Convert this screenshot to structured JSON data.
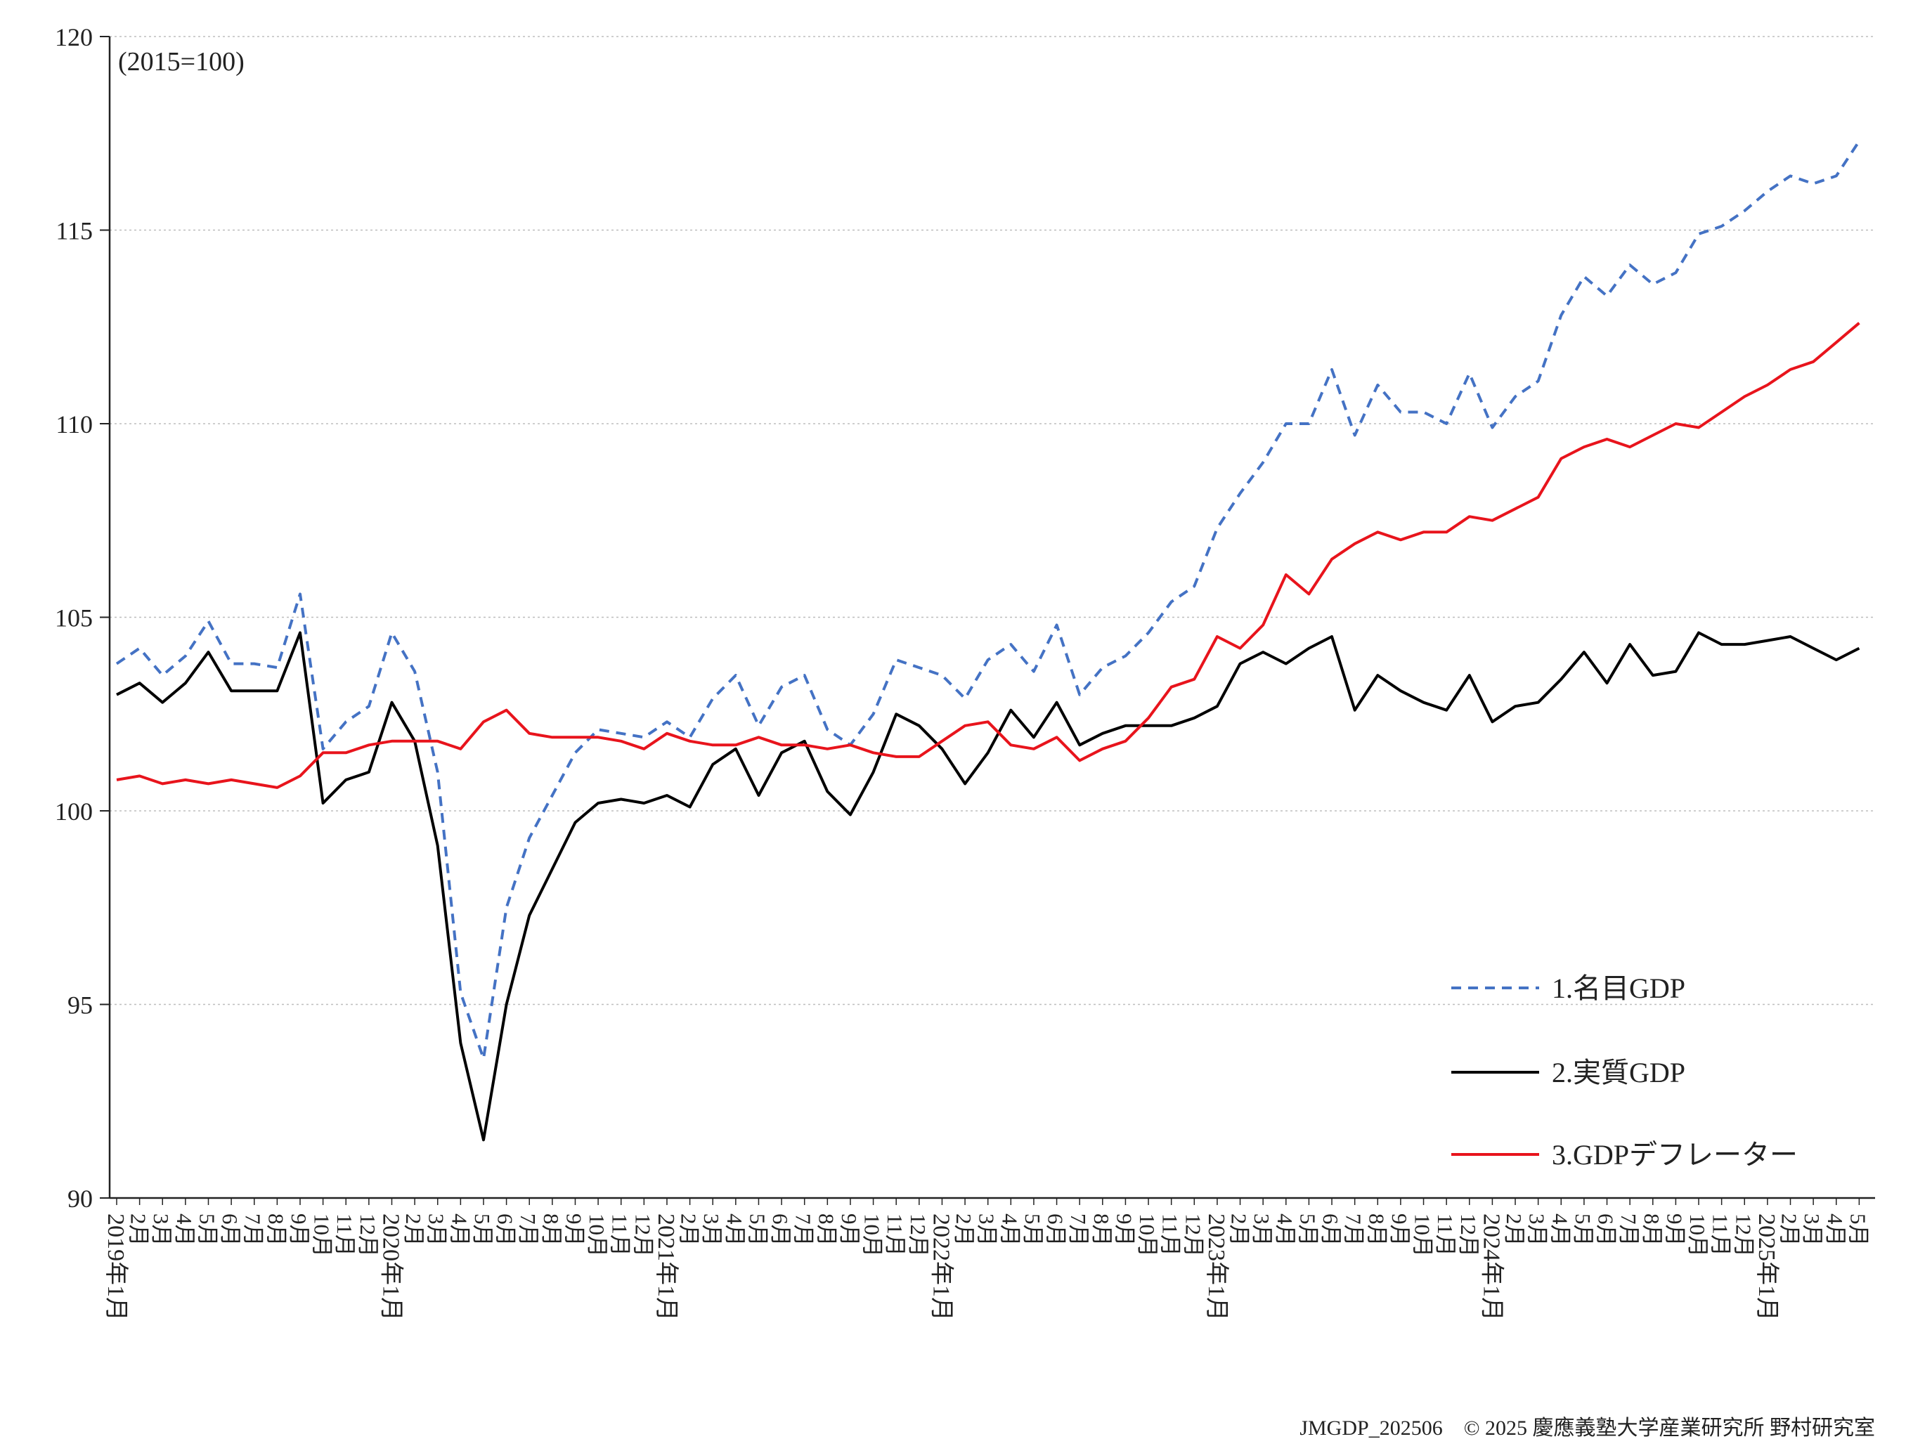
{
  "chart_data": {
    "type": "line",
    "unit_note": "(2015=100)",
    "ylim": [
      90,
      120
    ],
    "yticks": [
      90,
      95,
      100,
      105,
      110,
      115,
      120
    ],
    "grid": "horizontal dotted",
    "legend_position": "bottom-right",
    "x": [
      "2019年1月",
      "2月",
      "3月",
      "4月",
      "5月",
      "6月",
      "7月",
      "8月",
      "9月",
      "10月",
      "11月",
      "12月",
      "2020年1月",
      "2月",
      "3月",
      "4月",
      "5月",
      "6月",
      "7月",
      "8月",
      "9月",
      "10月",
      "11月",
      "12月",
      "2021年1月",
      "2月",
      "3月",
      "4月",
      "5月",
      "6月",
      "7月",
      "8月",
      "9月",
      "10月",
      "11月",
      "12月",
      "2022年1月",
      "2月",
      "3月",
      "4月",
      "5月",
      "6月",
      "7月",
      "8月",
      "9月",
      "10月",
      "11月",
      "12月",
      "2023年1月",
      "2月",
      "3月",
      "4月",
      "5月",
      "6月",
      "7月",
      "8月",
      "9月",
      "10月",
      "11月",
      "12月",
      "2024年1月",
      "2月",
      "3月",
      "4月",
      "5月",
      "6月",
      "7月",
      "8月",
      "9月",
      "10月",
      "11月",
      "12月",
      "2025年1月",
      "2月",
      "3月",
      "4月",
      "5月"
    ],
    "series": [
      {
        "name": "1.名目GDP",
        "color": "#4472C4",
        "dash": "dashed",
        "values": [
          103.8,
          104.2,
          103.5,
          104.0,
          104.9,
          103.8,
          103.8,
          103.7,
          105.6,
          101.6,
          102.3,
          102.7,
          104.6,
          103.6,
          101.0,
          95.3,
          93.6,
          97.5,
          99.3,
          100.4,
          101.5,
          102.1,
          102.0,
          101.9,
          102.3,
          101.9,
          102.9,
          103.5,
          102.2,
          103.2,
          103.5,
          102.1,
          101.7,
          102.5,
          103.9,
          103.7,
          103.5,
          102.9,
          103.9,
          104.3,
          103.6,
          104.8,
          103.0,
          103.7,
          104.0,
          104.6,
          105.4,
          105.8,
          107.3,
          108.2,
          109.0,
          110.0,
          110.0,
          111.4,
          109.7,
          111.0,
          110.3,
          110.3,
          110.0,
          111.3,
          109.9,
          110.7,
          111.1,
          112.8,
          113.8,
          113.3,
          114.1,
          113.6,
          113.9,
          114.9,
          115.1,
          115.5,
          116.0,
          116.4,
          116.2,
          116.4,
          117.3
        ]
      },
      {
        "name": "2.実質GDP",
        "color": "#000000",
        "dash": "solid",
        "values": [
          103.0,
          103.3,
          102.8,
          103.3,
          104.1,
          103.1,
          103.1,
          103.1,
          104.6,
          100.2,
          100.8,
          101.0,
          102.8,
          101.8,
          99.1,
          94.0,
          91.5,
          95.0,
          97.3,
          98.5,
          99.7,
          100.2,
          100.3,
          100.2,
          100.4,
          100.1,
          101.2,
          101.6,
          100.4,
          101.5,
          101.8,
          100.5,
          99.9,
          101.0,
          102.5,
          102.2,
          101.6,
          100.7,
          101.5,
          102.6,
          101.9,
          102.8,
          101.7,
          102.0,
          102.2,
          102.2,
          102.2,
          102.4,
          102.7,
          103.8,
          104.1,
          103.8,
          104.2,
          104.5,
          102.6,
          103.5,
          103.1,
          102.8,
          102.6,
          103.5,
          102.3,
          102.7,
          102.8,
          103.4,
          104.1,
          103.3,
          104.3,
          103.5,
          103.6,
          104.6,
          104.3,
          104.3,
          104.4,
          104.5,
          104.2,
          103.9,
          104.2
        ]
      },
      {
        "name": "3.GDPデフレーター",
        "color": "#E8141C",
        "dash": "solid",
        "values": [
          100.8,
          100.9,
          100.7,
          100.8,
          100.7,
          100.8,
          100.7,
          100.6,
          100.9,
          101.5,
          101.5,
          101.7,
          101.8,
          101.8,
          101.8,
          101.6,
          102.3,
          102.6,
          102.0,
          101.9,
          101.9,
          101.9,
          101.8,
          101.6,
          102.0,
          101.8,
          101.7,
          101.7,
          101.9,
          101.7,
          101.7,
          101.6,
          101.7,
          101.5,
          101.4,
          101.4,
          101.8,
          102.2,
          102.3,
          101.7,
          101.6,
          101.9,
          101.3,
          101.6,
          101.8,
          102.4,
          103.2,
          103.4,
          104.5,
          104.2,
          104.8,
          106.1,
          105.6,
          106.5,
          106.9,
          107.2,
          107.0,
          107.2,
          107.2,
          107.6,
          107.5,
          107.8,
          108.1,
          109.1,
          109.4,
          109.6,
          109.4,
          109.7,
          110.0,
          109.9,
          110.3,
          110.7,
          111.0,
          111.4,
          111.6,
          112.1,
          112.6
        ]
      }
    ]
  },
  "footer": "JMGDP_202506　© 2025 慶應義塾大学産業研究所 野村研究室"
}
